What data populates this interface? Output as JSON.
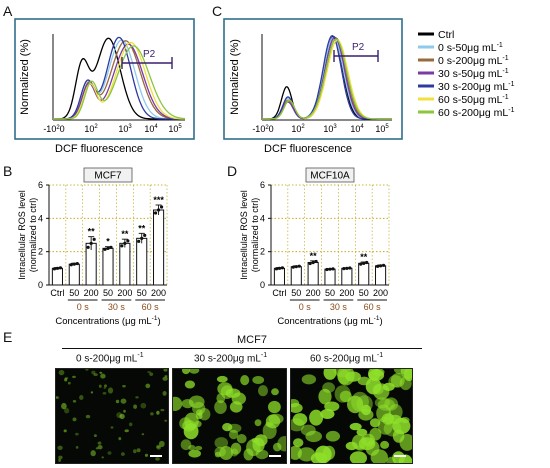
{
  "panels": {
    "A": "A",
    "B": "B",
    "C": "C",
    "D": "D",
    "E": "E"
  },
  "flow": {
    "ylabel": "Normalized (%)",
    "xlabel": "DCF fluorescence",
    "gate_label": "P2",
    "ticks": [
      "-10",
      "0",
      "10",
      "2",
      "10",
      "3",
      "10",
      "4",
      "10",
      "5"
    ]
  },
  "legend": {
    "items": [
      {
        "label": "Ctrl",
        "sup": "",
        "color": "#000000"
      },
      {
        "label": "0 s-50μg mL",
        "sup": "-1",
        "color": "#8ec9ee"
      },
      {
        "label": "0 s-200μg mL",
        "sup": "-1",
        "color": "#9a6a3a"
      },
      {
        "label": "30 s-50μg mL",
        "sup": "-1",
        "color": "#7b3aa6"
      },
      {
        "label": "30 s-200μg mL",
        "sup": "-1",
        "color": "#2e3aa0"
      },
      {
        "label": "60 s-50μg mL",
        "sup": "-1",
        "color": "#f0e040"
      },
      {
        "label": "60 s-200μg mL",
        "sup": "-1",
        "color": "#8cc63f"
      }
    ]
  },
  "bars_common": {
    "ylabel_1": "Intracellular ROS level",
    "ylabel_2": "(normalized to ctrl)",
    "xlabel": "Concentrations (μg mL",
    "xlabel_sup": "-1",
    "xlabel_end": ")",
    "yticks": [
      "0",
      "2",
      "4",
      "6"
    ],
    "xticks": [
      "Ctrl",
      "50",
      "200",
      "50",
      "200",
      "50",
      "200"
    ],
    "groups": [
      "0 s",
      "30 s",
      "60 s"
    ]
  },
  "chart_data": [
    {
      "type": "bar",
      "title": "MCF7",
      "categories": [
        "Ctrl",
        "50",
        "200",
        "50",
        "200",
        "50",
        "200"
      ],
      "values": [
        1.0,
        1.25,
        2.5,
        2.2,
        2.5,
        2.8,
        4.5
      ],
      "errors": [
        0.05,
        0.06,
        0.4,
        0.1,
        0.25,
        0.3,
        0.3
      ],
      "significance": [
        "",
        "",
        "**",
        "*",
        "**",
        "**",
        "***"
      ],
      "ylim": [
        0,
        6
      ]
    },
    {
      "type": "bar",
      "title": "MCF10A",
      "categories": [
        "Ctrl",
        "50",
        "200",
        "50",
        "200",
        "50",
        "200"
      ],
      "values": [
        1.0,
        1.1,
        1.35,
        0.95,
        1.0,
        1.3,
        1.15
      ],
      "errors": [
        0.05,
        0.05,
        0.1,
        0.03,
        0.03,
        0.08,
        0.05
      ],
      "significance": [
        "",
        "",
        "**",
        "",
        "",
        "**",
        ""
      ],
      "ylim": [
        0,
        6
      ]
    }
  ],
  "images": {
    "header": "MCF7",
    "captions": [
      {
        "label": "0 s-200μg mL",
        "sup": "-1"
      },
      {
        "label": "30 s-200μg mL",
        "sup": "-1"
      },
      {
        "label": "60 s-200μg mL",
        "sup": "-1"
      }
    ]
  },
  "colors": {
    "bar_fill": "#ffffff",
    "grid": "#b8a000",
    "frame": "#2e6f8e",
    "group_label": "#8b4a1a",
    "cells": "#8fe02a"
  }
}
